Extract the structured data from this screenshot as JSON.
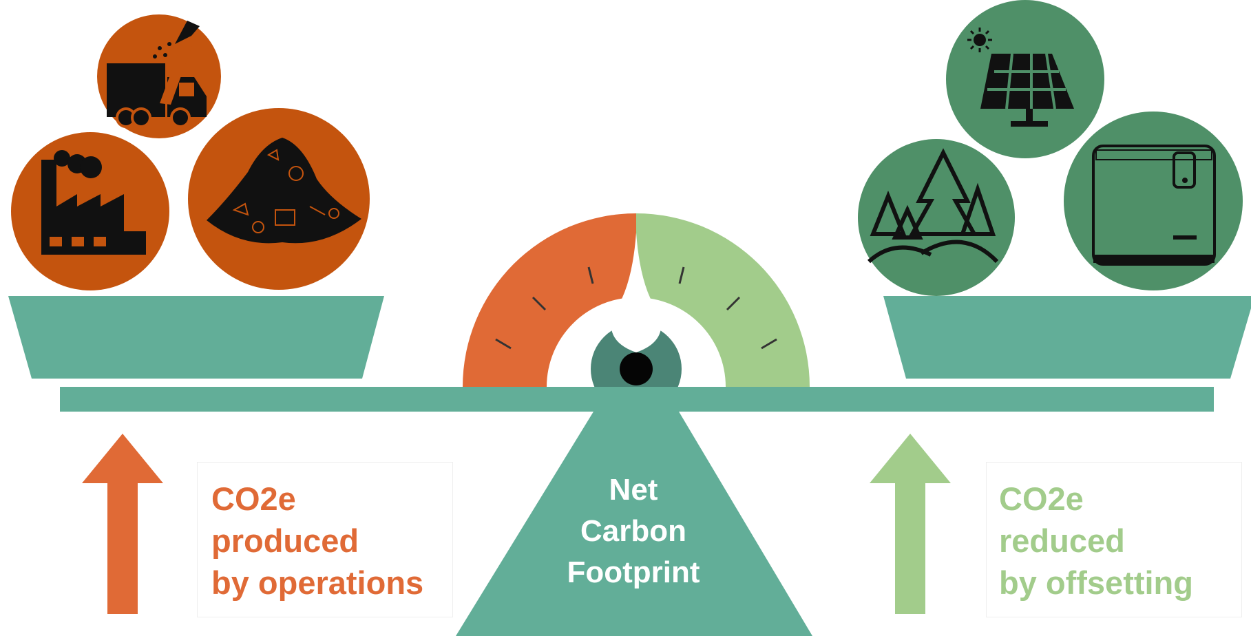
{
  "left": {
    "label_lines": [
      "CO2e",
      "produced",
      "by operations"
    ],
    "color": "#e06a36",
    "icon_bg": "#c4540e",
    "icons": [
      "garbage-truck-icon",
      "factory-icon",
      "waste-pile-icon"
    ]
  },
  "right": {
    "label_lines": [
      "CO2e",
      "reduced",
      "by offsetting"
    ],
    "color": "#a2cc8b",
    "icon_bg": "#4f9068",
    "icons": [
      "solar-panel-icon",
      "trees-icon",
      "composter-icon"
    ]
  },
  "center": {
    "label_lines": [
      "Net",
      "Carbon",
      "Footprint"
    ]
  },
  "colors": {
    "scale": "#62ae98",
    "hub": "#4b8576",
    "gauge_produced": "#e06a36",
    "gauge_reduced": "#a2cc8b"
  }
}
